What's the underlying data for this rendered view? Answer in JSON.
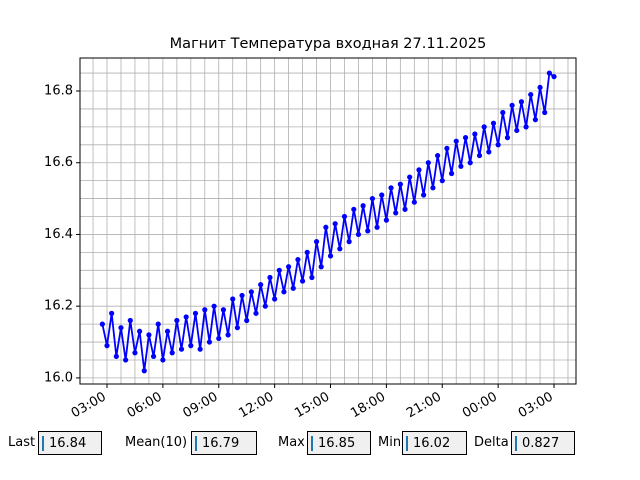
{
  "chart_data": {
    "type": "line",
    "title": "Магнит Температура входная 27.11.2025",
    "color": "#0000ff",
    "grid": true,
    "x": [
      2.75,
      3,
      3.25,
      3.5,
      3.75,
      4,
      4.25,
      4.5,
      4.75,
      5,
      5.25,
      5.5,
      5.75,
      6,
      6.25,
      6.5,
      6.75,
      7,
      7.25,
      7.5,
      7.75,
      8,
      8.25,
      8.5,
      8.75,
      9,
      9.25,
      9.5,
      9.75,
      10,
      10.25,
      10.5,
      10.75,
      11,
      11.25,
      11.5,
      11.75,
      12,
      12.25,
      12.5,
      12.75,
      13,
      13.25,
      13.5,
      13.75,
      14,
      14.25,
      14.5,
      14.75,
      15,
      15.25,
      15.5,
      15.75,
      16,
      16.25,
      16.5,
      16.75,
      17,
      17.25,
      17.5,
      17.75,
      18,
      18.25,
      18.5,
      18.75,
      19,
      19.25,
      19.5,
      19.75,
      20,
      20.25,
      20.5,
      20.75,
      21,
      21.25,
      21.5,
      21.75,
      22,
      22.25,
      22.5,
      22.75,
      23,
      23.25,
      23.5,
      23.75,
      24,
      24.25,
      24.5,
      24.75,
      25,
      25.25,
      25.5,
      25.75,
      26,
      26.25,
      26.5,
      26.75,
      27
    ],
    "values": [
      16.15,
      16.09,
      16.18,
      16.06,
      16.14,
      16.05,
      16.16,
      16.07,
      16.13,
      16.02,
      16.12,
      16.06,
      16.15,
      16.05,
      16.13,
      16.07,
      16.16,
      16.08,
      16.17,
      16.09,
      16.18,
      16.08,
      16.19,
      16.1,
      16.2,
      16.11,
      16.19,
      16.12,
      16.22,
      16.14,
      16.23,
      16.16,
      16.24,
      16.18,
      16.26,
      16.2,
      16.28,
      16.22,
      16.3,
      16.24,
      16.31,
      16.25,
      16.33,
      16.27,
      16.35,
      16.28,
      16.38,
      16.31,
      16.42,
      16.34,
      16.43,
      16.36,
      16.45,
      16.38,
      16.47,
      16.4,
      16.48,
      16.41,
      16.5,
      16.42,
      16.51,
      16.44,
      16.53,
      16.46,
      16.54,
      16.47,
      16.56,
      16.49,
      16.58,
      16.51,
      16.6,
      16.53,
      16.62,
      16.55,
      16.64,
      16.57,
      16.66,
      16.59,
      16.67,
      16.6,
      16.68,
      16.62,
      16.7,
      16.63,
      16.71,
      16.65,
      16.74,
      16.67,
      16.76,
      16.69,
      16.77,
      16.7,
      16.79,
      16.72,
      16.81,
      16.74,
      16.85,
      16.84
    ],
    "xlim": [
      1.55,
      28.18
    ],
    "ylim": [
      15.983,
      16.892
    ],
    "xticks": [
      {
        "value": 3,
        "label": "03:00"
      },
      {
        "value": 6,
        "label": "06:00"
      },
      {
        "value": 9,
        "label": "09:00"
      },
      {
        "value": 12,
        "label": "12:00"
      },
      {
        "value": 15,
        "label": "15:00"
      },
      {
        "value": 18,
        "label": "18:00"
      },
      {
        "value": 21,
        "label": "21:00"
      },
      {
        "value": 24,
        "label": "00:00"
      },
      {
        "value": 27,
        "label": "03:00"
      }
    ],
    "yticks": [
      {
        "value": 16,
        "label": "16.0"
      },
      16.2,
      16.4,
      16.6,
      16.8
    ],
    "xminorticks": [
      2.25,
      3.75,
      4.5,
      5.25,
      6.75,
      7.5,
      8.25,
      9.75,
      10.5,
      11.25,
      12.75,
      13.5,
      14.25,
      15.75,
      16.5,
      17.25,
      18.75,
      19.5,
      20.25,
      21.75,
      22.5,
      23.25,
      24.75,
      25.5,
      26.25,
      27.75
    ],
    "yminorticks": [
      16.05,
      16.1,
      16.15,
      16.25,
      16.3,
      16.35,
      16.45,
      16.5,
      16.55,
      16.65,
      16.7,
      16.75,
      16.85
    ]
  },
  "controls": [
    {
      "label": "Last",
      "value": "16.84"
    },
    {
      "label": "Mean(10)",
      "value": "16.79"
    },
    {
      "label": "Max",
      "value": "16.85"
    },
    {
      "label": "Min",
      "value": "16.02"
    },
    {
      "label": "Delta",
      "value": "0.827"
    }
  ]
}
